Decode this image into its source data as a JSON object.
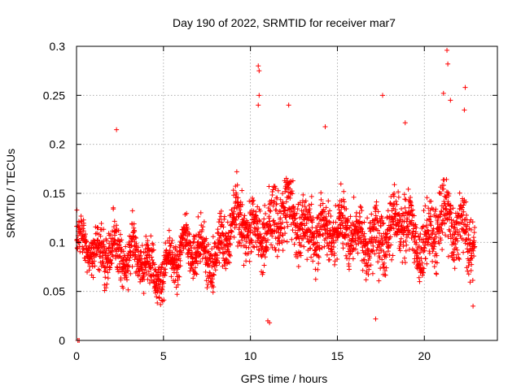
{
  "chart_data": {
    "type": "scatter",
    "title": "Day 190 of 2022, SRMTID for receiver mar7",
    "xlabel": "GPS time / hours",
    "ylabel": "SRMTID / TECUs",
    "xlim": [
      0,
      24.2
    ],
    "ylim": [
      0,
      0.3
    ],
    "xticks": [
      0,
      5,
      10,
      15,
      20
    ],
    "yticks": [
      0,
      0.05,
      0.1,
      0.15,
      0.2,
      0.25,
      0.3
    ],
    "xtick_labels": [
      "0",
      "5",
      "10",
      "15",
      "20"
    ],
    "ytick_labels": [
      "0",
      "0.05",
      "0.1",
      "0.15",
      "0.2",
      "0.25",
      "0.3"
    ],
    "grid": true,
    "marker": "+",
    "color": "#ff0000",
    "series": [
      {
        "name": "SRMTID",
        "envelope": {
          "x": [
            0,
            1,
            2,
            3,
            4,
            5,
            6,
            7,
            8,
            9,
            10,
            11,
            12,
            13,
            14,
            15,
            16,
            17,
            18,
            19,
            20,
            21,
            22,
            22.9
          ],
          "center": [
            0.095,
            0.09,
            0.1,
            0.08,
            0.08,
            0.075,
            0.085,
            0.095,
            0.09,
            0.115,
            0.115,
            0.12,
            0.125,
            0.115,
            0.12,
            0.105,
            0.11,
            0.11,
            0.105,
            0.12,
            0.1,
            0.12,
            0.115,
            0.11
          ],
          "spread": [
            0.03,
            0.025,
            0.04,
            0.035,
            0.03,
            0.03,
            0.03,
            0.035,
            0.035,
            0.04,
            0.045,
            0.045,
            0.045,
            0.045,
            0.045,
            0.04,
            0.04,
            0.045,
            0.045,
            0.04,
            0.045,
            0.05,
            0.045,
            0.04
          ]
        },
        "outliers": [
          {
            "x": 0.08,
            "y": 0.0
          },
          {
            "x": 0.15,
            "y": 0.0
          },
          {
            "x": 2.3,
            "y": 0.215
          },
          {
            "x": 10.45,
            "y": 0.28
          },
          {
            "x": 10.5,
            "y": 0.275
          },
          {
            "x": 10.5,
            "y": 0.25
          },
          {
            "x": 10.45,
            "y": 0.24
          },
          {
            "x": 11.0,
            "y": 0.02
          },
          {
            "x": 11.1,
            "y": 0.018
          },
          {
            "x": 12.2,
            "y": 0.24
          },
          {
            "x": 14.3,
            "y": 0.218
          },
          {
            "x": 17.2,
            "y": 0.022
          },
          {
            "x": 17.6,
            "y": 0.25
          },
          {
            "x": 18.9,
            "y": 0.222
          },
          {
            "x": 21.1,
            "y": 0.252
          },
          {
            "x": 21.3,
            "y": 0.296
          },
          {
            "x": 21.35,
            "y": 0.282
          },
          {
            "x": 21.5,
            "y": 0.245
          },
          {
            "x": 22.35,
            "y": 0.258
          },
          {
            "x": 22.3,
            "y": 0.235
          },
          {
            "x": 22.8,
            "y": 0.035
          }
        ]
      }
    ]
  }
}
